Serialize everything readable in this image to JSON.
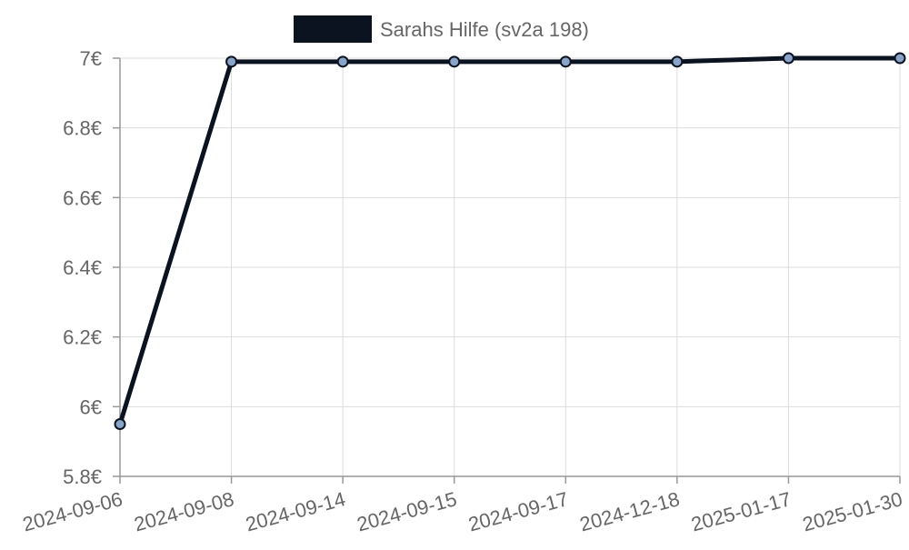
{
  "chart_data": {
    "type": "line",
    "title": "",
    "xlabel": "",
    "ylabel": "",
    "categories": [
      "2024-09-06",
      "2024-09-08",
      "2024-09-14",
      "2024-09-15",
      "2024-09-17",
      "2024-12-18",
      "2025-01-17",
      "2025-01-30"
    ],
    "series": [
      {
        "name": "Sarahs Hilfe (sv2a 198)",
        "values": [
          5.95,
          6.99,
          6.99,
          6.99,
          6.99,
          6.99,
          7.0,
          7.0
        ],
        "line_color": "#0b1220",
        "point_fill": "#8aa4c8"
      }
    ],
    "ylim": [
      5.8,
      7.0
    ],
    "y_ticks": [
      5.8,
      6.0,
      6.2,
      6.4,
      6.6,
      6.8,
      7.0
    ],
    "y_tick_labels": [
      "5.8€",
      "6€",
      "6.2€",
      "6.4€",
      "6.6€",
      "6.8€",
      "7€"
    ],
    "grid": true,
    "legend_position": "top-center"
  }
}
